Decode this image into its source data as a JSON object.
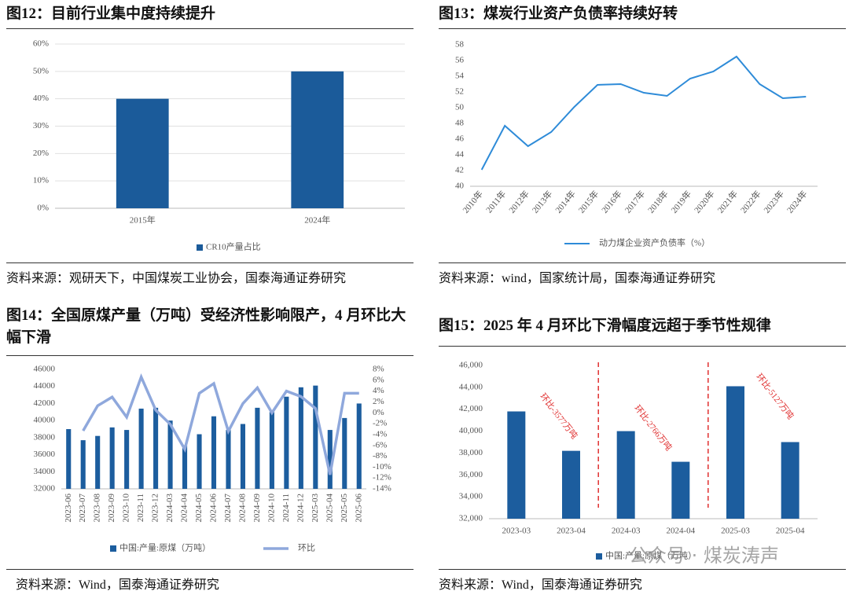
{
  "chart_data": [
    {
      "type": "bar",
      "title": "图12：目前行业集中度持续提升",
      "source": "资料来源：观研天下，中国煤炭工业协会，国泰海通证券研究",
      "categories": [
        "2015年",
        "2024年"
      ],
      "series": [
        {
          "name": "CR10产量占比",
          "color": "#1b5b9a",
          "values": [
            40,
            50
          ]
        }
      ],
      "ylim": [
        0,
        60
      ],
      "yticks": [
        {
          "value": 0,
          "label": "0%"
        },
        {
          "value": 10,
          "label": "10%"
        },
        {
          "value": 20,
          "label": "20%"
        },
        {
          "value": 30,
          "label": "30%"
        },
        {
          "value": 40,
          "label": "40%"
        },
        {
          "value": 50,
          "label": "50%"
        },
        {
          "value": 60,
          "label": "60%"
        }
      ],
      "grid": true
    },
    {
      "type": "line",
      "title": "图13：煤炭行业资产负债率持续好转",
      "source": "资料来源：wind，国家统计局，国泰海通证券研究",
      "categories": [
        "2010年",
        "2011年",
        "2012年",
        "2013年",
        "2014年",
        "2015年",
        "2016年",
        "2017年",
        "2018年",
        "2019年",
        "2020年",
        "2021年",
        "2022年",
        "2023年",
        "2024年"
      ],
      "series": [
        {
          "name": "动力煤企业资产负债率（%）",
          "color": "#2e8bd8",
          "values": [
            42.1,
            47.7,
            45.1,
            46.9,
            50.1,
            52.9,
            53.0,
            51.9,
            51.5,
            53.7,
            54.6,
            56.5,
            53.0,
            51.2,
            51.4
          ]
        }
      ],
      "ylim": [
        40,
        58
      ],
      "yticks": [
        40,
        42,
        44,
        46,
        48,
        50,
        52,
        54,
        56,
        58
      ],
      "grid": false
    },
    {
      "type": "combo",
      "title": "图14：全国原煤产量（万吨）受经济性影响限产，4 月环比大幅下滑",
      "source": "资料来源：Wind，国泰海通证券研究",
      "categories": [
        "2023-06",
        "2023-07",
        "2023-08",
        "2023-09",
        "2023-10",
        "2023-11",
        "2023-12",
        "2024-03",
        "2024-04",
        "2024-05",
        "2024-06",
        "2024-07",
        "2024-08",
        "2024-09",
        "2024-10",
        "2024-11",
        "2024-12",
        "2025-03",
        "2025-04",
        "2025-05",
        "2025-06"
      ],
      "series": [
        {
          "name": "中国:产量:原煤（万吨）",
          "type": "bar",
          "color": "#1c5d9e",
          "values": [
            39000,
            37700,
            38200,
            39200,
            38900,
            41400,
            41500,
            40000,
            37100,
            38400,
            40500,
            38900,
            39600,
            41500,
            41000,
            42800,
            43900,
            44100,
            38900,
            40300,
            42000
          ]
        },
        {
          "name": "环比",
          "type": "line",
          "axis": "y2",
          "color": "#8fa8dc",
          "values": [
            null,
            -3.3,
            1.3,
            2.9,
            -0.8,
            6.6,
            0.5,
            -2.1,
            -6.7,
            3.6,
            5.4,
            -3.4,
            1.7,
            4.6,
            0,
            4.0,
            3.0,
            0.8,
            -11.4,
            3.6,
            3.6
          ]
        }
      ],
      "ylim": [
        32000,
        46000
      ],
      "yticks": [
        32000,
        34000,
        36000,
        38000,
        40000,
        42000,
        44000,
        46000
      ],
      "y2lim": [
        -14,
        8
      ],
      "y2ticks": [
        {
          "value": -14,
          "label": "-14%"
        },
        {
          "value": -12,
          "label": "-12%"
        },
        {
          "value": -10,
          "label": "-10%"
        },
        {
          "value": -8,
          "label": "-8%"
        },
        {
          "value": -6,
          "label": "-6%"
        },
        {
          "value": -4,
          "label": "-4%"
        },
        {
          "value": -2,
          "label": "-2%"
        },
        {
          "value": 0,
          "label": "0%"
        },
        {
          "value": 2,
          "label": "2%"
        },
        {
          "value": 4,
          "label": "4%"
        },
        {
          "value": 6,
          "label": "6%"
        },
        {
          "value": 8,
          "label": "8%"
        }
      ],
      "grid": false
    },
    {
      "type": "bar",
      "title": "图15：2025 年 4 月环比下滑幅度远超于季节性规律",
      "source": "资料来源：Wind，国泰海通证券研究",
      "categories": [
        "2023-03",
        "2023-04",
        "2024-03",
        "2024-04",
        "2025-03",
        "2025-04"
      ],
      "series": [
        {
          "name": "中国:产量:原煤（万吨）",
          "color": "#1c5d9e",
          "values": [
            41800,
            38200,
            40000,
            37200,
            44100,
            39000
          ]
        }
      ],
      "ylim": [
        32000,
        46000
      ],
      "yticks": [
        {
          "value": 32000,
          "label": "32,000"
        },
        {
          "value": 34000,
          "label": "34,000"
        },
        {
          "value": 36000,
          "label": "36,000"
        },
        {
          "value": 38000,
          "label": "38,000"
        },
        {
          "value": 40000,
          "label": "40,000"
        },
        {
          "value": 42000,
          "label": "42,000"
        },
        {
          "value": 44000,
          "label": "44,000"
        },
        {
          "value": 46000,
          "label": "46,000"
        }
      ],
      "annotations": [
        "环比-3577万吨",
        "环比-2766万吨",
        "环比-5127万吨"
      ],
      "watermark": "公众号 · 煤炭涛声",
      "grid": false
    }
  ]
}
